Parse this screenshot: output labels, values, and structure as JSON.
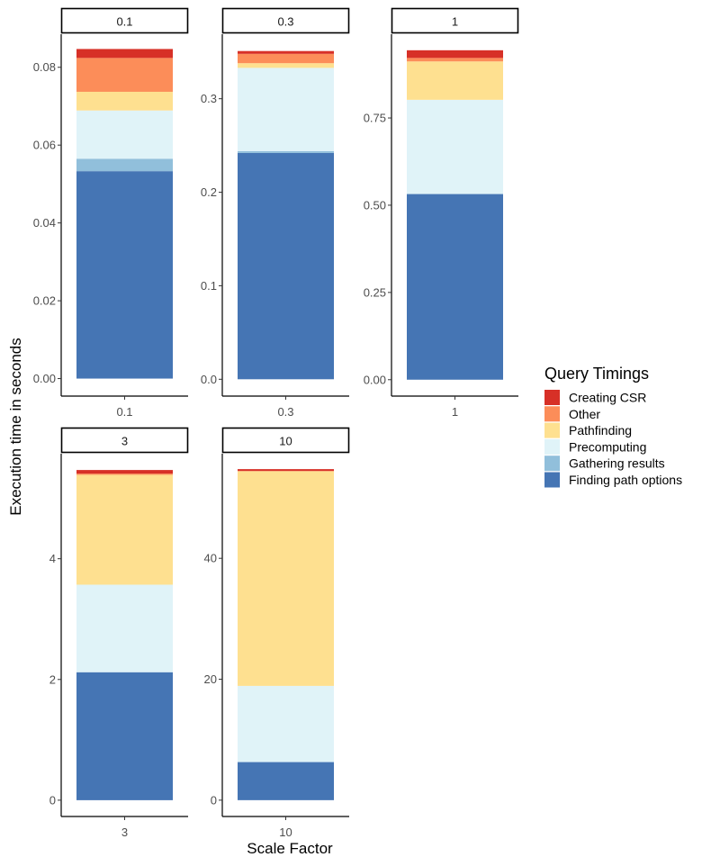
{
  "chart_data": {
    "type": "bar",
    "stacked": true,
    "faceted": true,
    "facet_scales": "free",
    "xlabel": "Scale Factor",
    "ylabel": "Execution time in seconds",
    "grid": false,
    "legend": {
      "title": "Query Timings",
      "position": "right",
      "entries": [
        {
          "name": "Creating CSR",
          "color": "#d73027"
        },
        {
          "name": "Other",
          "color": "#fc8d59"
        },
        {
          "name": "Pathfinding",
          "color": "#fee090"
        },
        {
          "name": "Precomputing",
          "color": "#e0f3f8"
        },
        {
          "name": "Gathering results",
          "color": "#91bfdb"
        },
        {
          "name": "Finding path options",
          "color": "#4575b4"
        }
      ]
    },
    "stack_order_bottom_to_top": [
      "Finding path options",
      "Gathering results",
      "Precomputing",
      "Pathfinding",
      "Other",
      "Creating CSR"
    ],
    "facets": [
      {
        "strip": "0.1",
        "category": "0.1",
        "ylim": [
          -0.0045,
          0.0885
        ],
        "yticks": [
          0.0,
          0.02,
          0.04,
          0.06,
          0.08
        ],
        "ytick_labels": [
          "0.00",
          "0.02",
          "0.04",
          "0.06",
          "0.08"
        ],
        "values": {
          "Finding path options": 0.0533,
          "Gathering results": 0.0032,
          "Precomputing": 0.0124,
          "Pathfinding": 0.0048,
          "Other": 0.0087,
          "Creating CSR": 0.0023
        }
      },
      {
        "strip": "0.3",
        "category": "0.3",
        "ylim": [
          -0.018,
          0.369
        ],
        "yticks": [
          0.0,
          0.1,
          0.2,
          0.3
        ],
        "ytick_labels": [
          "0.0",
          "0.1",
          "0.2",
          "0.3"
        ],
        "values": {
          "Finding path options": 0.242,
          "Gathering results": 0.002,
          "Precomputing": 0.089,
          "Pathfinding": 0.005,
          "Other": 0.01,
          "Creating CSR": 0.003
        }
      },
      {
        "strip": "1",
        "category": "1",
        "ylim": [
          -0.047,
          0.99
        ],
        "yticks": [
          0.0,
          0.25,
          0.5,
          0.75
        ],
        "ytick_labels": [
          "0.00",
          "0.25",
          "0.50",
          "0.75"
        ],
        "values": {
          "Finding path options": 0.532,
          "Gathering results": 0.0,
          "Precomputing": 0.27,
          "Pathfinding": 0.11,
          "Other": 0.01,
          "Creating CSR": 0.022
        }
      },
      {
        "strip": "3",
        "category": "3",
        "ylim": [
          -0.27,
          5.74
        ],
        "yticks": [
          0,
          2,
          4
        ],
        "ytick_labels": [
          "0",
          "2",
          "4"
        ],
        "values": {
          "Finding path options": 2.12,
          "Gathering results": 0.0,
          "Precomputing": 1.45,
          "Pathfinding": 1.82,
          "Other": 0.02,
          "Creating CSR": 0.06
        }
      },
      {
        "strip": "10",
        "category": "10",
        "ylim": [
          -2.7,
          57.3
        ],
        "yticks": [
          0,
          20,
          40
        ],
        "ytick_labels": [
          "0",
          "20",
          "40"
        ],
        "values": {
          "Finding path options": 6.3,
          "Gathering results": 0.0,
          "Precomputing": 12.6,
          "Pathfinding": 35.5,
          "Other": 0.05,
          "Creating CSR": 0.3
        }
      }
    ]
  }
}
